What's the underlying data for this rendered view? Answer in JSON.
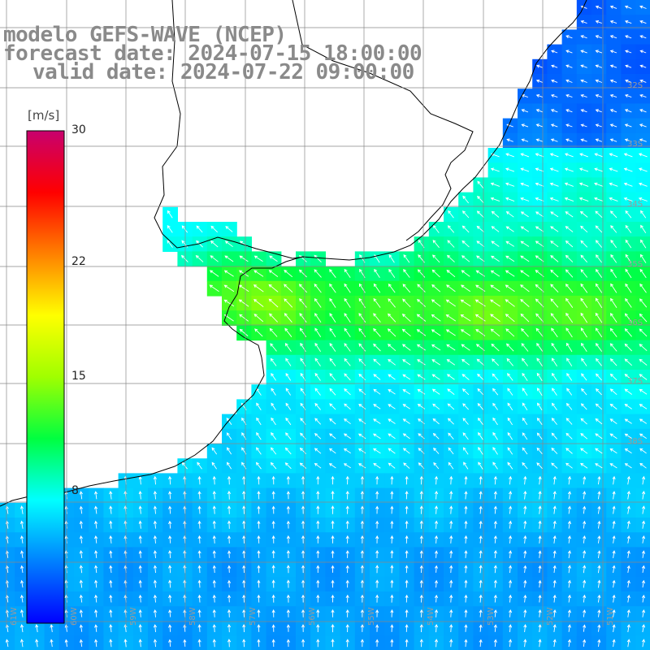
{
  "title": {
    "line1": "modelo GEFS-WAVE (NCEP)",
    "line2": "forecast date: 2024-07-15 18:00:00",
    "line3": "valid date: 2024-07-22 09:00:00"
  },
  "colorbar": {
    "unit": "[m/s]",
    "ticks": [
      {
        "value": 30,
        "label": "30"
      },
      {
        "value": 22,
        "label": "22"
      },
      {
        "value": 15,
        "label": "15"
      },
      {
        "value": 8,
        "label": "8"
      }
    ],
    "range": [
      0,
      30
    ],
    "stops": [
      "#0000ff",
      "#0080ff",
      "#00ffff",
      "#00ff40",
      "#a0ff00",
      "#ffff00",
      "#ff8000",
      "#ff0000",
      "#c8006e"
    ]
  },
  "map": {
    "parameter": "wind speed with direction arrows",
    "lon_labels": [
      "61W",
      "60W",
      "59W",
      "58W",
      "57W",
      "56W",
      "55W",
      "54W",
      "53W",
      "52W",
      "51W"
    ],
    "lat_labels": [
      "32S",
      "33S",
      "34S",
      "35S",
      "36S",
      "37S",
      "38S"
    ],
    "colors": {
      "land": "#ffffff",
      "grid": "#888888",
      "coast": "#000000",
      "arrow": "#ffffff"
    }
  }
}
